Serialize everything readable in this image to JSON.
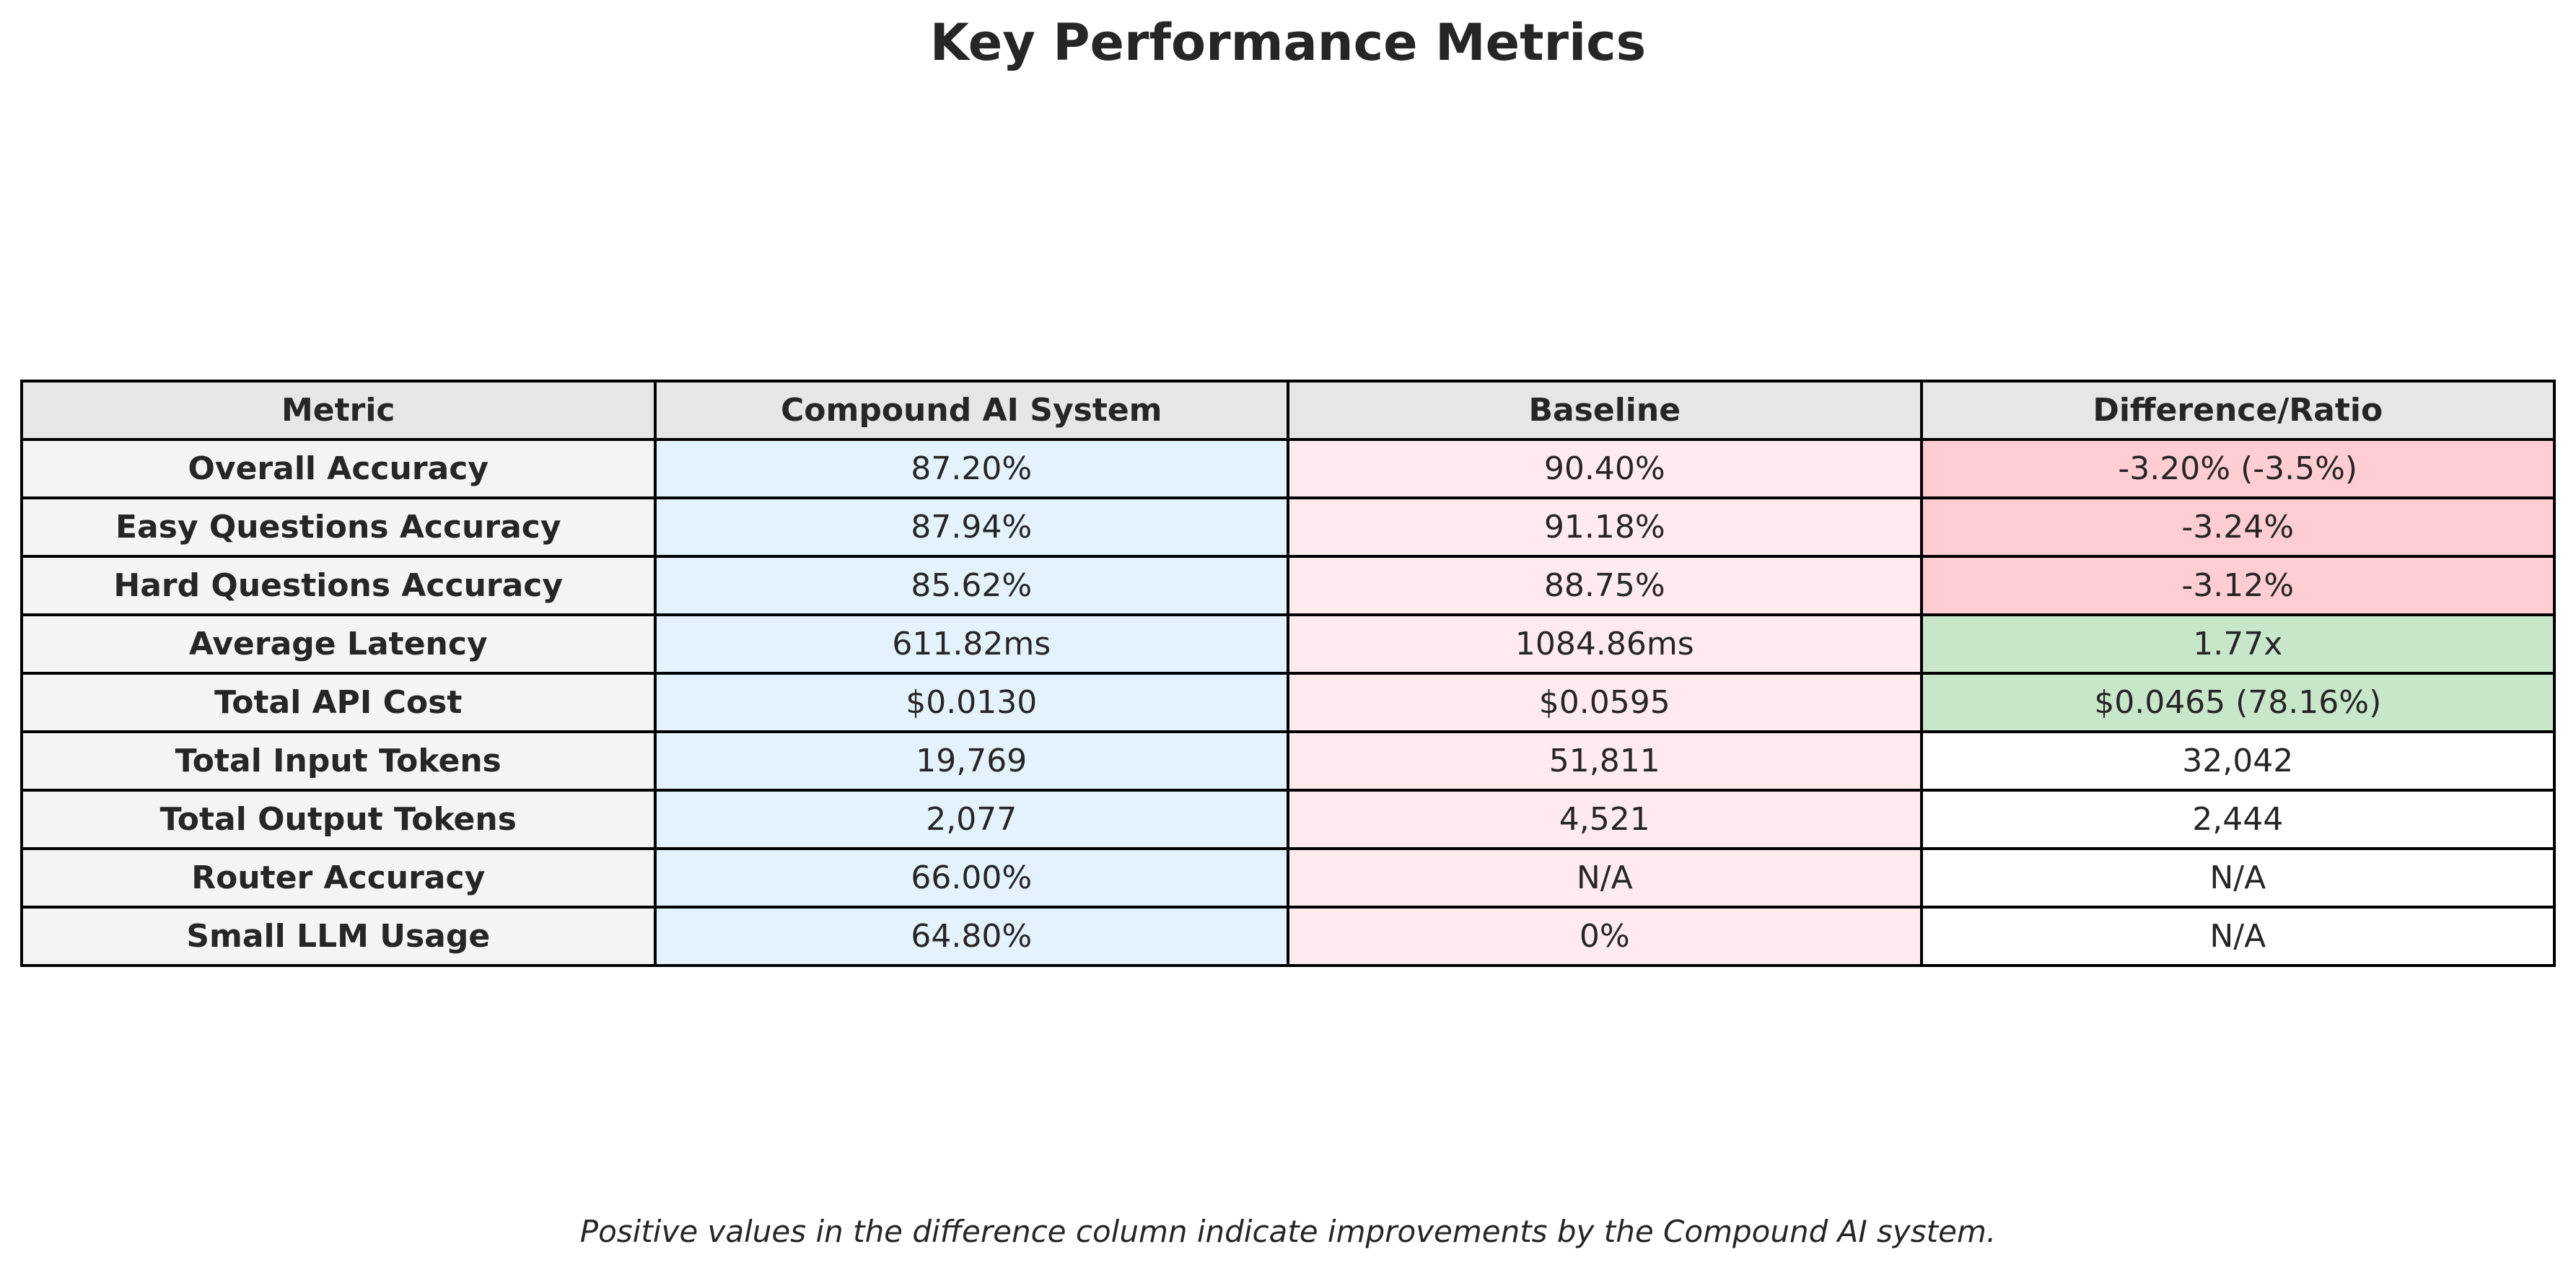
{
  "title": "Key Performance Metrics",
  "footnote": "Positive values in the difference column indicate improvements by the Compound AI system.",
  "colors": {
    "header_bg": "#e6e6e6",
    "metric_bg": "#f4f4f4",
    "compound_bg": "#e3f2fd",
    "baseline_bg": "#ffebee",
    "diff_negative_bg": "#ffcdd2",
    "diff_positive_bg": "#c8e6c9",
    "diff_neutral_bg": "#ffffff"
  },
  "chart_data": {
    "type": "table",
    "title": "Key Performance Metrics",
    "columns": [
      "Metric",
      "Compound AI System",
      "Baseline",
      "Difference/Ratio"
    ],
    "rows": [
      {
        "metric": "Overall Accuracy",
        "compound": "87.20%",
        "baseline": "90.40%",
        "difference": "-3.20% (-3.5%)",
        "status": "negative"
      },
      {
        "metric": "Easy Questions Accuracy",
        "compound": "87.94%",
        "baseline": "91.18%",
        "difference": "-3.24%",
        "status": "negative"
      },
      {
        "metric": "Hard Questions Accuracy",
        "compound": "85.62%",
        "baseline": "88.75%",
        "difference": "-3.12%",
        "status": "negative"
      },
      {
        "metric": "Average Latency",
        "compound": "611.82ms",
        "baseline": "1084.86ms",
        "difference": "1.77x",
        "status": "positive"
      },
      {
        "metric": "Total API Cost",
        "compound": "$0.0130",
        "baseline": "$0.0595",
        "difference": "$0.0465 (78.16%)",
        "status": "positive"
      },
      {
        "metric": "Total Input Tokens",
        "compound": "19,769",
        "baseline": "51,811",
        "difference": "32,042",
        "status": "neutral"
      },
      {
        "metric": "Total Output Tokens",
        "compound": "2,077",
        "baseline": "4,521",
        "difference": "2,444",
        "status": "neutral"
      },
      {
        "metric": "Router Accuracy",
        "compound": "66.00%",
        "baseline": "N/A",
        "difference": "N/A",
        "status": "neutral"
      },
      {
        "metric": "Small LLM Usage",
        "compound": "64.80%",
        "baseline": "0%",
        "difference": "N/A",
        "status": "neutral"
      }
    ]
  }
}
